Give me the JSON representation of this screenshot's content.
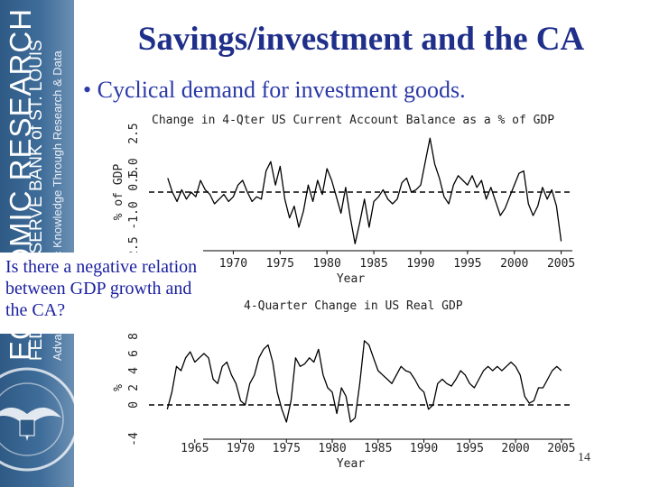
{
  "slide": {
    "title": "Savings/investment and the CA",
    "bullet": "• Cyclical demand for investment goods.",
    "question": "Is there a negative relation between GDP growth and the CA?",
    "page_number": "14"
  },
  "sidebar": {
    "brand_big": "ECONOMIC RESEARCH",
    "brand_mid": "FEDERAL RESERVE BANK of ST. LOUIS",
    "brand_small": "Advancing Economic Knowledge Through Research & Data",
    "colors": {
      "background": "#3f6d99",
      "text": "#ffffff"
    }
  },
  "chart_data": [
    {
      "type": "line",
      "title": "Change in 4-Qter US Current Account Balance as a % of GDP",
      "xlabel": "Year",
      "ylabel": "% of GDP",
      "xlim": [
        1961,
        2006
      ],
      "ylim": [
        -2.5,
        2.5
      ],
      "xticks": [
        "1970",
        "1975",
        "1980",
        "1985",
        "1990",
        "1995",
        "2000",
        "2005"
      ],
      "yticks": [
        "-2.5",
        "-1.0",
        "0.5",
        "1.0",
        "2.5"
      ],
      "reference_line": 0,
      "x": [
        1963.0,
        1963.5,
        1964.0,
        1964.5,
        1965.0,
        1965.5,
        1966.0,
        1966.5,
        1967.0,
        1967.5,
        1968.0,
        1968.5,
        1969.0,
        1969.5,
        1970.0,
        1970.5,
        1971.0,
        1971.5,
        1972.0,
        1972.5,
        1973.0,
        1973.5,
        1974.0,
        1974.5,
        1975.0,
        1975.5,
        1976.0,
        1976.5,
        1977.0,
        1977.5,
        1978.0,
        1978.5,
        1979.0,
        1979.5,
        1980.0,
        1980.5,
        1981.0,
        1981.5,
        1982.0,
        1982.5,
        1983.0,
        1983.5,
        1984.0,
        1984.5,
        1985.0,
        1985.5,
        1986.0,
        1986.5,
        1987.0,
        1987.5,
        1988.0,
        1988.5,
        1989.0,
        1989.5,
        1990.0,
        1990.5,
        1991.0,
        1991.5,
        1992.0,
        1992.5,
        1993.0,
        1993.5,
        1994.0,
        1994.5,
        1995.0,
        1995.5,
        1996.0,
        1996.5,
        1997.0,
        1997.5,
        1998.0,
        1998.5,
        1999.0,
        1999.5,
        2000.0,
        2000.5,
        2001.0,
        2001.5,
        2002.0,
        2002.5,
        2003.0,
        2003.5,
        2004.0,
        2004.5,
        2005.0
      ],
      "values": [
        0.6,
        0.0,
        -0.4,
        0.1,
        -0.3,
        0.0,
        -0.2,
        0.5,
        0.1,
        -0.1,
        -0.5,
        -0.3,
        -0.1,
        -0.4,
        -0.2,
        0.3,
        0.5,
        0.0,
        -0.4,
        -0.2,
        -0.3,
        0.9,
        1.3,
        0.3,
        1.1,
        -0.3,
        -1.1,
        -0.6,
        -1.5,
        -0.8,
        0.3,
        -0.4,
        0.5,
        -0.1,
        1.0,
        0.5,
        -0.2,
        -0.9,
        0.2,
        -1.1,
        -2.2,
        -1.3,
        -0.3,
        -1.5,
        -0.4,
        -0.2,
        0.1,
        -0.3,
        -0.5,
        -0.3,
        0.4,
        0.6,
        0.0,
        0.1,
        0.3,
        1.3,
        2.3,
        1.2,
        0.6,
        -0.2,
        -0.5,
        0.3,
        0.7,
        0.5,
        0.3,
        0.7,
        0.2,
        0.5,
        -0.3,
        0.2,
        -0.4,
        -1.0,
        -0.7,
        -0.2,
        0.3,
        0.8,
        0.9,
        -0.5,
        -1.0,
        -0.6,
        0.2,
        -0.3,
        0.1,
        -0.6,
        -2.1
      ]
    },
    {
      "type": "line",
      "title": "4-Quarter Change in US Real GDP",
      "xlabel": "Year",
      "ylabel": "%",
      "xlim": [
        1960,
        2006
      ],
      "ylim": [
        -4,
        8
      ],
      "xticks": [
        "1965",
        "1970",
        "1975",
        "1980",
        "1985",
        "1990",
        "1995",
        "2000",
        "2005"
      ],
      "yticks": [
        "-4",
        "0",
        "2",
        "4",
        "6",
        "8"
      ],
      "reference_line": 0,
      "x": [
        1962.0,
        1962.5,
        1963.0,
        1963.5,
        1964.0,
        1964.5,
        1965.0,
        1965.5,
        1966.0,
        1966.5,
        1967.0,
        1967.5,
        1968.0,
        1968.5,
        1969.0,
        1969.5,
        1970.0,
        1970.5,
        1971.0,
        1971.5,
        1972.0,
        1972.5,
        1973.0,
        1973.5,
        1974.0,
        1974.5,
        1975.0,
        1975.5,
        1976.0,
        1976.5,
        1977.0,
        1977.5,
        1978.0,
        1978.5,
        1979.0,
        1979.5,
        1980.0,
        1980.5,
        1981.0,
        1981.5,
        1982.0,
        1982.5,
        1983.0,
        1983.5,
        1984.0,
        1984.5,
        1985.0,
        1985.5,
        1986.0,
        1986.5,
        1987.0,
        1987.5,
        1988.0,
        1988.5,
        1989.0,
        1989.5,
        1990.0,
        1990.5,
        1991.0,
        1991.5,
        1992.0,
        1992.5,
        1993.0,
        1993.5,
        1994.0,
        1994.5,
        1995.0,
        1995.5,
        1996.0,
        1996.5,
        1997.0,
        1997.5,
        1998.0,
        1998.5,
        1999.0,
        1999.5,
        2000.0,
        2000.5,
        2001.0,
        2001.5,
        2002.0,
        2002.5,
        2003.0,
        2003.5,
        2004.0,
        2004.5,
        2005.0
      ],
      "values": [
        -0.5,
        1.5,
        4.5,
        4.0,
        5.5,
        6.2,
        5.0,
        5.5,
        6.0,
        5.5,
        3.0,
        2.5,
        4.5,
        5.0,
        3.5,
        2.5,
        0.5,
        0.0,
        2.5,
        3.5,
        5.5,
        6.5,
        7.0,
        5.0,
        1.5,
        -0.5,
        -2.0,
        0.5,
        5.5,
        4.5,
        4.8,
        5.5,
        5.0,
        6.5,
        3.5,
        2.0,
        1.5,
        -1.0,
        2.0,
        1.0,
        -2.0,
        -1.5,
        2.5,
        7.5,
        7.0,
        5.5,
        4.0,
        3.5,
        3.0,
        2.5,
        3.5,
        4.5,
        4.0,
        3.8,
        3.0,
        2.0,
        1.5,
        -0.5,
        0.0,
        2.5,
        3.0,
        2.5,
        2.2,
        3.0,
        4.0,
        3.5,
        2.5,
        2.0,
        3.0,
        4.0,
        4.5,
        4.0,
        4.5,
        4.0,
        4.5,
        5.0,
        4.5,
        3.5,
        1.0,
        0.2,
        0.5,
        2.0,
        2.0,
        3.0,
        4.0,
        4.5,
        4.0
      ]
    }
  ]
}
